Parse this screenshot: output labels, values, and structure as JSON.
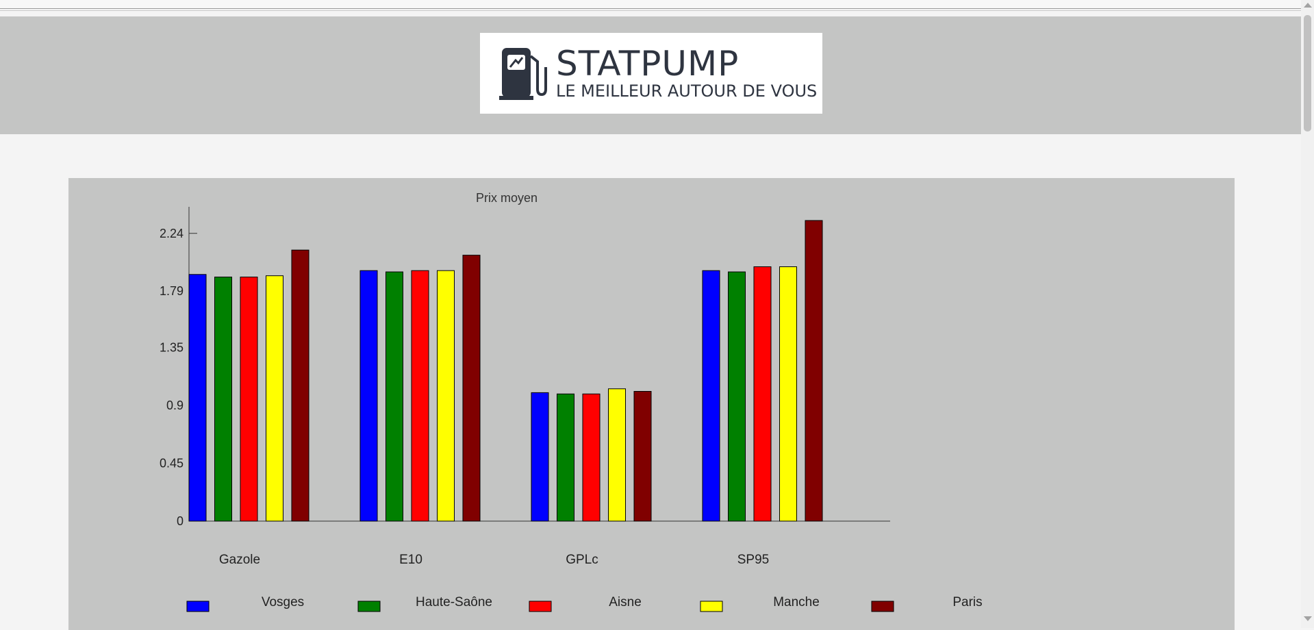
{
  "logo": {
    "brand": "STATPUMP",
    "tagline": "LE MEILLEUR AUTOUR DE VOUS"
  },
  "icons": [
    "fuel-pump-icon",
    "scroll-up-icon",
    "scroll-down-icon"
  ],
  "chart_data": {
    "type": "bar",
    "title": "Prix moyen",
    "xlabel": "",
    "ylabel": "",
    "categories": [
      "Gazole",
      "E10",
      "GPLc",
      "SP95"
    ],
    "yticks": [
      "0",
      "0.45",
      "0.9",
      "1.35",
      "1.79",
      "2.24"
    ],
    "ylim": [
      0,
      2.34
    ],
    "grid": false,
    "legend": "bottom",
    "series": [
      {
        "name": "Vosges",
        "color": "#0000ff",
        "values": [
          1.92,
          1.95,
          1.0,
          1.95
        ]
      },
      {
        "name": "Haute-Saône",
        "color": "#008000",
        "values": [
          1.9,
          1.94,
          0.99,
          1.94
        ]
      },
      {
        "name": "Aisne",
        "color": "#ff0000",
        "values": [
          1.9,
          1.95,
          0.99,
          1.98
        ]
      },
      {
        "name": "Manche",
        "color": "#ffff00",
        "values": [
          1.91,
          1.95,
          1.03,
          1.98
        ]
      },
      {
        "name": "Paris",
        "color": "#800000",
        "values": [
          2.11,
          2.07,
          1.01,
          2.34
        ]
      }
    ]
  }
}
